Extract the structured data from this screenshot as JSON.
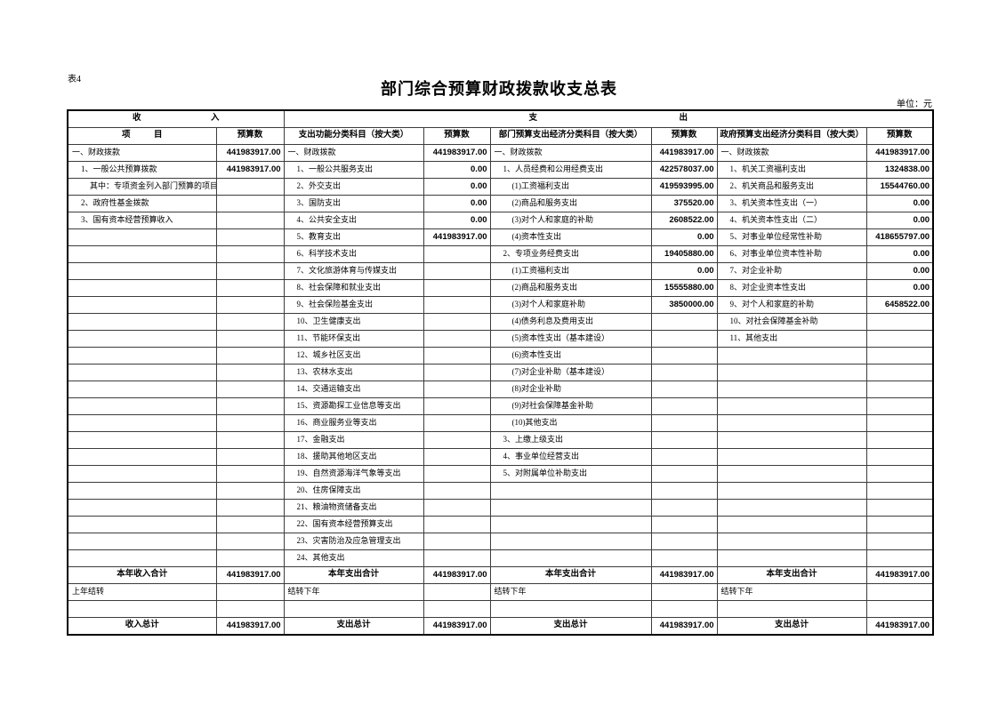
{
  "page": {
    "table_label": "表4",
    "title": "部门综合预算财政拨款收支总表",
    "unit_label": "单位：元"
  },
  "table": {
    "section_income": "收入",
    "section_expenditure": "支出",
    "columns": [
      "项目",
      "预算数",
      "支出功能分类科目（按大类）",
      "预算数",
      "部门预算支出经济分类科目（按大类）",
      "预算数",
      "政府预算支出经济分类科目（按大类）",
      "预算数"
    ],
    "data_row_count": 25
  },
  "groups": {
    "income": [
      {
        "label": "一、财政拨款",
        "value": "441983917.00",
        "indent": 0
      },
      {
        "label": "1、一般公共预算拨款",
        "value": "441983917.00",
        "indent": 1
      },
      {
        "label": "其中：专项资金列入部门预算的项目",
        "value": "",
        "indent": 2
      },
      {
        "label": "2、政府性基金拨款",
        "value": "",
        "indent": 1
      },
      {
        "label": "3、国有资本经营预算收入",
        "value": "",
        "indent": 1
      }
    ],
    "function_class": [
      {
        "label": "一、财政拨款",
        "value": "441983917.00",
        "indent": 0
      },
      {
        "label": "1、一般公共服务支出",
        "value": "0.00",
        "indent": 1
      },
      {
        "label": "2、外交支出",
        "value": "0.00",
        "indent": 1
      },
      {
        "label": "3、国防支出",
        "value": "0.00",
        "indent": 1
      },
      {
        "label": "4、公共安全支出",
        "value": "0.00",
        "indent": 1
      },
      {
        "label": "5、教育支出",
        "value": "441983917.00",
        "indent": 1
      },
      {
        "label": "6、科学技术支出",
        "value": "",
        "indent": 1
      },
      {
        "label": "7、文化旅游体育与传媒支出",
        "value": "",
        "indent": 1
      },
      {
        "label": "8、社会保障和就业支出",
        "value": "",
        "indent": 1
      },
      {
        "label": "9、社会保险基金支出",
        "value": "",
        "indent": 1
      },
      {
        "label": "10、卫生健康支出",
        "value": "",
        "indent": 1
      },
      {
        "label": "11、节能环保支出",
        "value": "",
        "indent": 1
      },
      {
        "label": "12、城乡社区支出",
        "value": "",
        "indent": 1
      },
      {
        "label": "13、农林水支出",
        "value": "",
        "indent": 1
      },
      {
        "label": "14、交通运输支出",
        "value": "",
        "indent": 1
      },
      {
        "label": "15、资源勘探工业信息等支出",
        "value": "",
        "indent": 1
      },
      {
        "label": "16、商业服务业等支出",
        "value": "",
        "indent": 1
      },
      {
        "label": "17、金融支出",
        "value": "",
        "indent": 1
      },
      {
        "label": "18、援助其他地区支出",
        "value": "",
        "indent": 1
      },
      {
        "label": "19、自然资源海洋气象等支出",
        "value": "",
        "indent": 1
      },
      {
        "label": "20、住房保障支出",
        "value": "",
        "indent": 1
      },
      {
        "label": "21、粮油物资储备支出",
        "value": "",
        "indent": 1
      },
      {
        "label": "22、国有资本经营预算支出",
        "value": "",
        "indent": 1
      },
      {
        "label": "23、灾害防治及应急管理支出",
        "value": "",
        "indent": 1
      },
      {
        "label": "24、其他支出",
        "value": "",
        "indent": 1
      }
    ],
    "dept_economic": [
      {
        "label": "一、财政拨款",
        "value": "441983917.00",
        "indent": 0
      },
      {
        "label": "1、人员经费和公用经费支出",
        "value": "422578037.00",
        "indent": 1
      },
      {
        "label": "(1)工资福利支出",
        "value": "419593995.00",
        "indent": 2
      },
      {
        "label": "(2)商品和服务支出",
        "value": "375520.00",
        "indent": 2
      },
      {
        "label": "(3)对个人和家庭的补助",
        "value": "2608522.00",
        "indent": 2
      },
      {
        "label": "(4)资本性支出",
        "value": "0.00",
        "indent": 2
      },
      {
        "label": "2、专项业务经费支出",
        "value": "19405880.00",
        "indent": 1
      },
      {
        "label": "(1)工资福利支出",
        "value": "0.00",
        "indent": 2
      },
      {
        "label": "(2)商品和服务支出",
        "value": "15555880.00",
        "indent": 2
      },
      {
        "label": "(3)对个人和家庭补助",
        "value": "3850000.00",
        "indent": 2
      },
      {
        "label": "(4)债务利息及费用支出",
        "value": "",
        "indent": 2
      },
      {
        "label": "(5)资本性支出（基本建设）",
        "value": "",
        "indent": 2
      },
      {
        "label": "(6)资本性支出",
        "value": "",
        "indent": 2
      },
      {
        "label": "(7)对企业补助（基本建设）",
        "value": "",
        "indent": 2
      },
      {
        "label": "(8)对企业补助",
        "value": "",
        "indent": 2
      },
      {
        "label": "(9)对社会保障基金补助",
        "value": "",
        "indent": 2
      },
      {
        "label": "(10)其他支出",
        "value": "",
        "indent": 2
      },
      {
        "label": "3、上缴上级支出",
        "value": "",
        "indent": 1
      },
      {
        "label": "4、事业单位经营支出",
        "value": "",
        "indent": 1
      },
      {
        "label": "5、对附属单位补助支出",
        "value": "",
        "indent": 1
      }
    ],
    "gov_economic": [
      {
        "label": "一、财政拨款",
        "value": "441983917.00",
        "indent": 0
      },
      {
        "label": "1、机关工资福利支出",
        "value": "1324838.00",
        "indent": 1
      },
      {
        "label": "2、机关商品和服务支出",
        "value": "15544760.00",
        "indent": 1
      },
      {
        "label": "3、机关资本性支出（一）",
        "value": "0.00",
        "indent": 1
      },
      {
        "label": "4、机关资本性支出（二）",
        "value": "0.00",
        "indent": 1
      },
      {
        "label": "5、对事业单位经常性补助",
        "value": "418655797.00",
        "indent": 1
      },
      {
        "label": "6、对事业单位资本性补助",
        "value": "0.00",
        "indent": 1
      },
      {
        "label": "7、对企业补助",
        "value": "0.00",
        "indent": 1
      },
      {
        "label": "8、对企业资本性支出",
        "value": "0.00",
        "indent": 1
      },
      {
        "label": "9、对个人和家庭的补助",
        "value": "6458522.00",
        "indent": 1
      },
      {
        "label": "10、对社会保障基金补助",
        "value": "",
        "indent": 1
      },
      {
        "label": "11、其他支出",
        "value": "",
        "indent": 1
      }
    ]
  },
  "summary_rows": [
    {
      "style": "total",
      "cells": [
        [
          "本年收入合计",
          "441983917.00"
        ],
        [
          "本年支出合计",
          "441983917.00"
        ],
        [
          "本年支出合计",
          "441983917.00"
        ],
        [
          "本年支出合计",
          "441983917.00"
        ]
      ]
    },
    {
      "style": "plain",
      "cells": [
        [
          "上年结转",
          ""
        ],
        [
          "结转下年",
          ""
        ],
        [
          "结转下年",
          ""
        ],
        [
          "结转下年",
          ""
        ]
      ]
    },
    {
      "style": "blank",
      "cells": [
        [
          "",
          ""
        ],
        [
          "",
          ""
        ],
        [
          "",
          ""
        ],
        [
          "",
          ""
        ]
      ]
    },
    {
      "style": "total",
      "cells": [
        [
          "收入总计",
          "441983917.00"
        ],
        [
          "支出总计",
          "441983917.00"
        ],
        [
          "支出总计",
          "441983917.00"
        ],
        [
          "支出总计",
          "441983917.00"
        ]
      ]
    }
  ]
}
